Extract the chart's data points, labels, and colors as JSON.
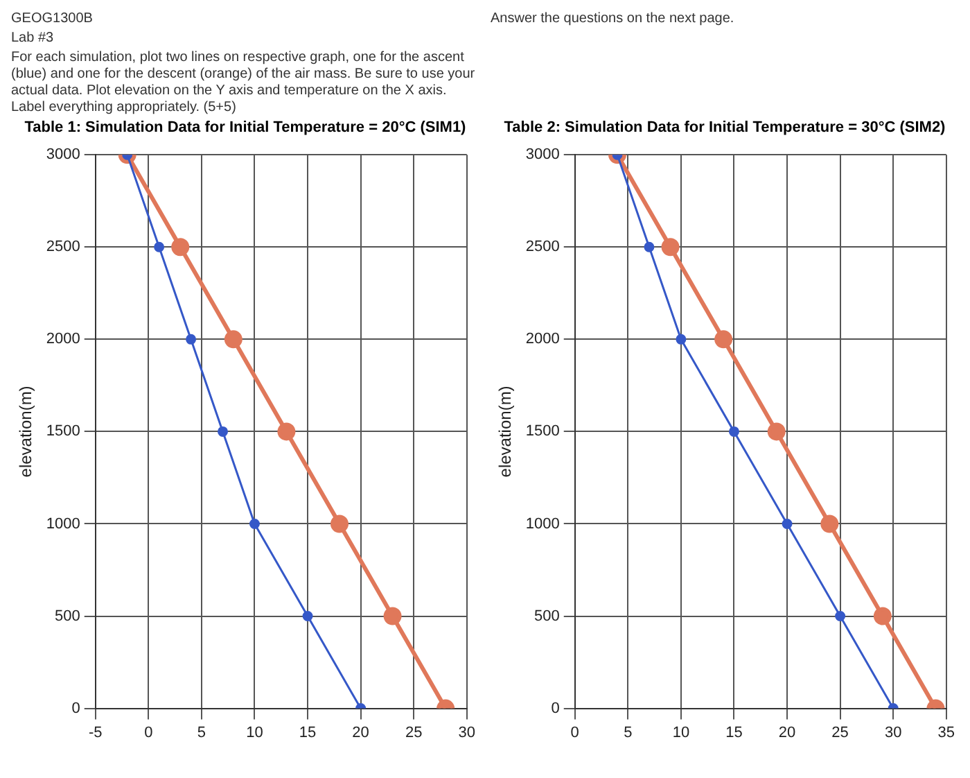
{
  "chart_data": [
    {
      "type": "line",
      "title": "Table 1: Simulation Data for Initial Temperature = 20°C (SIM1)",
      "ylabel": "elevation(m)",
      "annotations": [
        "GEOG1300B",
        "Lab #3",
        "For each simulation, plot two lines on respective graph, one for the ascent (blue) and one for the descent (orange) of the air mass. Be sure to use your actual data. Plot elevation on the Y axis and temperature on the X axis. Label everything appropriately. (5+5)"
      ],
      "series": [
        {
          "color": "#3558c8",
          "x": [
            20,
            15,
            10,
            7,
            4,
            1,
            -2
          ],
          "values": [
            0,
            500,
            1000,
            1500,
            2000,
            2500,
            3000
          ]
        },
        {
          "color": "#e0785a",
          "x": [
            28,
            23,
            18,
            13,
            8,
            3,
            -2
          ],
          "values": [
            0,
            500,
            1000,
            1500,
            2000,
            2500,
            3000
          ]
        }
      ],
      "xlim": [
        -5,
        30
      ],
      "xticks": [
        -5,
        0,
        5,
        10,
        15,
        20,
        25,
        30
      ],
      "ylim": [
        0,
        3000
      ],
      "yticks": [
        0,
        500,
        1000,
        1500,
        2000,
        2500,
        3000
      ],
      "grid": true,
      "marker": "circle",
      "legend": false
    },
    {
      "type": "line",
      "title": "Table 2: Simulation Data for Initial Temperature = 30°C (SIM2)",
      "ylabel": "elevation(m)",
      "annotations": [
        "Answer the questions on the next page."
      ],
      "series": [
        {
          "color": "#3558c8",
          "x": [
            30,
            25,
            20,
            15,
            10,
            7,
            4
          ],
          "values": [
            0,
            500,
            1000,
            1500,
            2000,
            2500,
            3000
          ]
        },
        {
          "color": "#e0785a",
          "x": [
            34,
            29,
            24,
            19,
            14,
            9,
            4
          ],
          "values": [
            0,
            500,
            1000,
            1500,
            2000,
            2500,
            3000
          ]
        }
      ],
      "xlim": [
        0,
        35
      ],
      "xticks": [
        0,
        5,
        10,
        15,
        20,
        25,
        30,
        35
      ],
      "ylim": [
        0,
        3000
      ],
      "yticks": [
        0,
        500,
        1000,
        1500,
        2000,
        2500,
        3000
      ],
      "grid": true,
      "marker": "circle",
      "legend": false
    }
  ]
}
